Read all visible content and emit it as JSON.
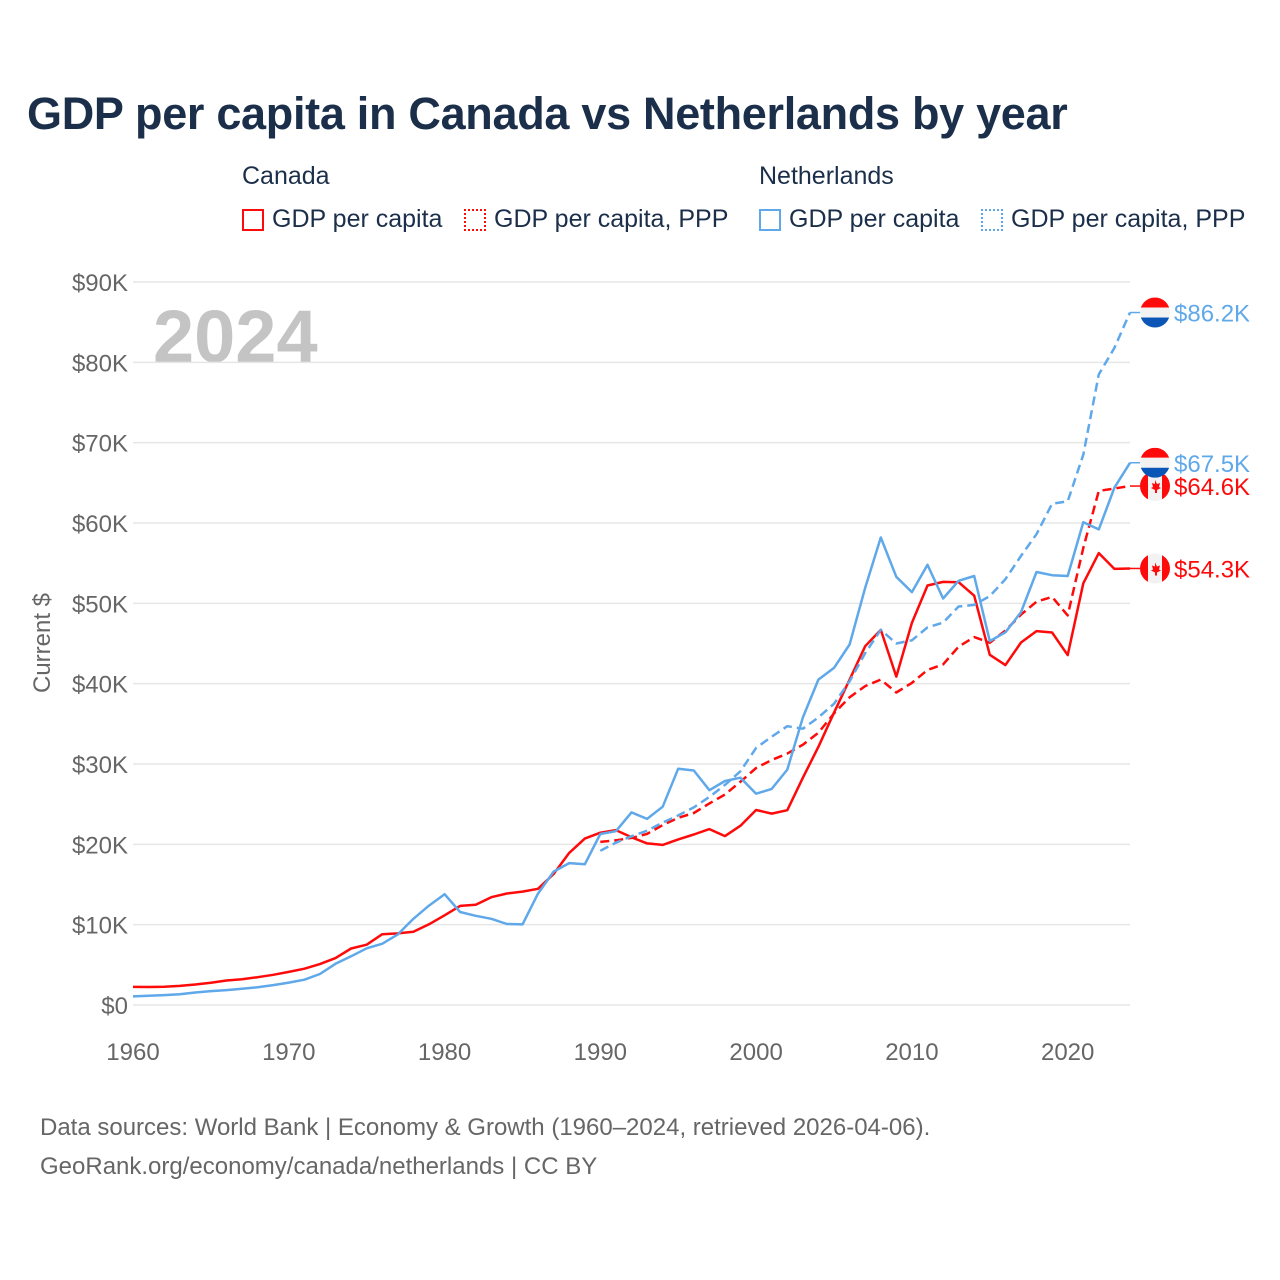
{
  "title": "GDP per capita in Canada vs Netherlands by year",
  "legend": {
    "groups": [
      {
        "label": "Canada",
        "items": [
          "GDP per capita",
          "GDP per capita, PPP"
        ]
      },
      {
        "label": "Netherlands",
        "items": [
          "GDP per capita",
          "GDP per capita, PPP"
        ]
      }
    ]
  },
  "footer": {
    "line1": "Data sources: World Bank | Economy & Growth (1960–2024, retrieved 2026-04-06).",
    "line2": "GeoRank.org/economy/canada/netherlands | CC BY"
  },
  "chart_data": {
    "type": "line",
    "title": "GDP per capita in Canada vs Netherlands by year",
    "xlabel": "",
    "ylabel": "Current $",
    "current_year_label": "2024",
    "xlim": [
      1960,
      2024
    ],
    "ylim": [
      0,
      90000
    ],
    "x_ticks": [
      1960,
      1970,
      1980,
      1990,
      2000,
      2010,
      2020
    ],
    "x_tick_labels": [
      "1960",
      "1970",
      "1980",
      "1990",
      "2000",
      "2010",
      "2020"
    ],
    "y_ticks": [
      0,
      10000,
      20000,
      30000,
      40000,
      50000,
      60000,
      70000,
      80000,
      90000
    ],
    "y_tick_labels": [
      "$0",
      "$10K",
      "$20K",
      "$30K",
      "$40K",
      "$50K",
      "$60K",
      "$70K",
      "$80K",
      "$90K"
    ],
    "grid": true,
    "legend_position": "top",
    "series": [
      {
        "name": "Canada GDP per capita",
        "country": "Canada",
        "color": "#ff0a0a",
        "dashed": false,
        "start": 1960,
        "end_label": "$54.3K",
        "values": [
          2259,
          2240,
          2269,
          2374,
          2555,
          2770,
          3047,
          3217,
          3463,
          3764,
          4122,
          4520,
          5090,
          5839,
          7033,
          7511,
          8809,
          8919,
          9124,
          10044,
          11171,
          12337,
          12482,
          13425,
          13877,
          14114,
          14461,
          16309,
          18936,
          20716,
          21448,
          21768,
          20880,
          20121,
          19935,
          20614,
          21227,
          21901,
          21025,
          22315,
          24271,
          23822,
          24255,
          28300,
          32144,
          36383,
          40505,
          44660,
          46711,
          40876,
          47562,
          52224,
          52670,
          52635,
          50956,
          43596,
          42316,
          45129,
          46549,
          46374,
          43562,
          52497,
          56256,
          54283,
          54340
        ]
      },
      {
        "name": "Canada GDP per capita, PPP",
        "country": "Canada",
        "color": "#ff0a0a",
        "dashed": true,
        "start": 1990,
        "end_label": "$64.6K",
        "values": [
          20300,
          20500,
          20800,
          21300,
          22400,
          23300,
          23900,
          25100,
          26200,
          27800,
          29500,
          30500,
          31300,
          32400,
          33900,
          36300,
          38300,
          39700,
          40500,
          38900,
          40100,
          41700,
          42400,
          44600,
          45800,
          45100,
          46600,
          48600,
          50200,
          50800,
          48500,
          56900,
          64000,
          64300,
          64600
        ]
      },
      {
        "name": "Netherlands GDP per capita",
        "country": "Netherlands",
        "color": "#5fa8ea",
        "dashed": false,
        "start": 1960,
        "end_label": "$67.5K",
        "values": [
          1069,
          1141,
          1230,
          1327,
          1557,
          1730,
          1850,
          2018,
          2213,
          2482,
          2791,
          3154,
          3861,
          5132,
          6067,
          7060,
          7629,
          8793,
          10730,
          12375,
          13790,
          11578,
          11102,
          10734,
          10080,
          10030,
          13870,
          16600,
          17660,
          17520,
          21290,
          21640,
          23970,
          23160,
          24680,
          29410,
          29190,
          26740,
          27880,
          28300,
          26300,
          26900,
          29300,
          35800,
          40500,
          41960,
          44870,
          51950,
          58200,
          53300,
          51400,
          54800,
          50600,
          52800,
          53400,
          45300,
          46400,
          48900,
          53900,
          53500,
          53400,
          60100,
          59200,
          64400,
          67500
        ]
      },
      {
        "name": "Netherlands GDP per capita, PPP",
        "country": "Netherlands",
        "color": "#5fa8ea",
        "dashed": true,
        "start": 1990,
        "end_label": "$86.2K",
        "values": [
          19200,
          20200,
          21000,
          21700,
          22700,
          23600,
          24600,
          25900,
          27400,
          29100,
          32000,
          33400,
          34700,
          34400,
          35800,
          37500,
          40300,
          43800,
          46700,
          45000,
          45400,
          47000,
          47600,
          49600,
          49800,
          50900,
          53000,
          55900,
          58600,
          62400,
          62700,
          68500,
          78500,
          81800,
          86200
        ]
      }
    ]
  }
}
